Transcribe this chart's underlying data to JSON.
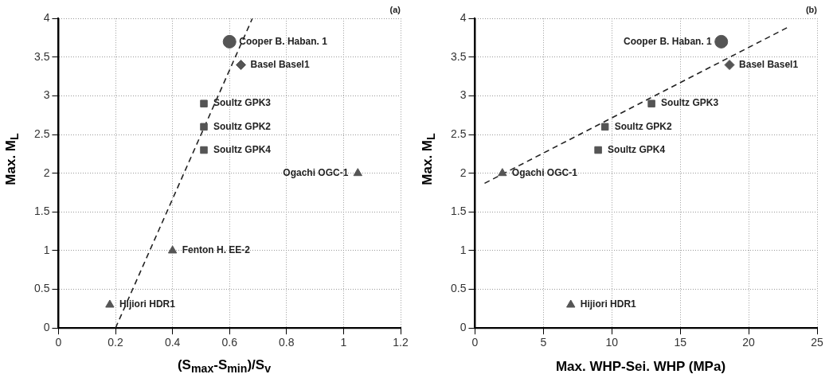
{
  "chart_data": [
    {
      "type": "scatter",
      "title": "(a)",
      "xlabel": "(S$_{max}$-S$_{min}$)/S$_{v}$",
      "ylabel": "Max.  M$_{L}$",
      "xlim": [
        0,
        1.2
      ],
      "xticks": [
        0,
        0.2,
        0.4,
        0.6,
        0.8,
        1,
        1.2
      ],
      "ylim": [
        0,
        4
      ],
      "yticks": [
        0,
        0.5,
        1,
        1.5,
        2,
        2.5,
        3,
        3.5,
        4
      ],
      "grid": true,
      "legend": false,
      "series": [
        {
          "name": "Cooper B. Haban. 1",
          "color": "#555555",
          "marker": "circle",
          "x": [
            0.6
          ],
          "values": [
            3.7
          ]
        },
        {
          "name": "Basel Basel1",
          "color": "#555555",
          "marker": "diamond",
          "x": [
            0.64
          ],
          "values": [
            3.4
          ]
        },
        {
          "name": "Soultz GPK3",
          "color": "#555555",
          "marker": "square",
          "x": [
            0.51
          ],
          "values": [
            2.9
          ]
        },
        {
          "name": "Soultz GPK2",
          "color": "#555555",
          "marker": "square",
          "x": [
            0.51
          ],
          "values": [
            2.6
          ]
        },
        {
          "name": "Soultz GPK4",
          "color": "#555555",
          "marker": "square",
          "x": [
            0.51
          ],
          "values": [
            2.3
          ]
        },
        {
          "name": "Ogachi OGC-1",
          "color": "#555555",
          "marker": "triangle",
          "x": [
            1.05
          ],
          "values": [
            2.0
          ]
        },
        {
          "name": "Fenton H. EE-2",
          "color": "#555555",
          "marker": "triangle",
          "x": [
            0.4
          ],
          "values": [
            1.0
          ]
        },
        {
          "name": "Hijiori HDR1",
          "color": "#555555",
          "marker": "triangle",
          "x": [
            0.18
          ],
          "values": [
            0.3
          ]
        },
        {
          "type": "line",
          "color": "#222222",
          "line_style": "dashed",
          "marker": "none",
          "x": [
            0.2,
            0.68
          ],
          "values": [
            0,
            4
          ]
        }
      ]
    },
    {
      "type": "scatter",
      "title": "(b)",
      "xlabel": "Max. WHP-Sei. WHP (MPa)",
      "ylabel": "Max.  M$_{L}$",
      "xlim": [
        0,
        25
      ],
      "xticks": [
        0,
        5,
        10,
        15,
        20,
        25
      ],
      "ylim": [
        0,
        4
      ],
      "yticks": [
        0,
        0.5,
        1,
        1.5,
        2,
        2.5,
        3,
        3.5,
        4
      ],
      "grid": true,
      "legend": false,
      "series": [
        {
          "name": "Cooper B. Haban. 1",
          "color": "#555555",
          "marker": "circle",
          "x": [
            18
          ],
          "values": [
            3.7
          ]
        },
        {
          "name": "Basel Basel1",
          "color": "#555555",
          "marker": "diamond",
          "x": [
            18.6
          ],
          "values": [
            3.4
          ]
        },
        {
          "name": "Soultz GPK3",
          "color": "#555555",
          "marker": "square",
          "x": [
            12.9
          ],
          "values": [
            2.9
          ]
        },
        {
          "name": "Soultz GPK2",
          "color": "#555555",
          "marker": "square",
          "x": [
            9.5
          ],
          "values": [
            2.6
          ]
        },
        {
          "name": "Soultz GPK4",
          "color": "#555555",
          "marker": "square",
          "x": [
            9.0
          ],
          "values": [
            2.3
          ]
        },
        {
          "name": "Ogachi OGC-1",
          "color": "#555555",
          "marker": "triangle",
          "x": [
            2.0
          ],
          "values": [
            2.0
          ]
        },
        {
          "name": "Hijiori HDR1",
          "color": "#555555",
          "marker": "triangle",
          "x": [
            7.0
          ],
          "values": [
            0.3
          ]
        },
        {
          "type": "line",
          "color": "#222222",
          "line_style": "dashed",
          "marker": "none",
          "x": [
            0.7,
            22.8
          ],
          "values": [
            1.87,
            3.88
          ]
        }
      ]
    }
  ]
}
